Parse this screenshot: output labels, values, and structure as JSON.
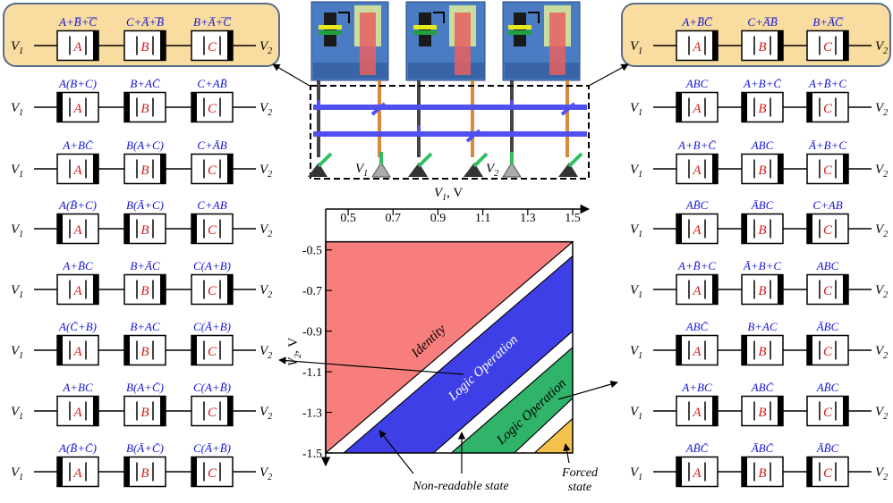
{
  "colors": {
    "identity": "#f87e7e",
    "logic_operation": "#3f3fe8",
    "logic_operation_2": "#2fb46a",
    "forced_state": "#f6c24e",
    "label_blue": "#1515d8",
    "label_red": "#d41a1a",
    "highlight_box": "#f8dca0"
  },
  "device_letters": [
    "A",
    "B",
    "C"
  ],
  "terminals": {
    "v1": "V",
    "v1_sub": "1",
    "v2": "V",
    "v2_sub": "2"
  },
  "left_column": [
    {
      "exprs": [
        "A+B̅+̅C̅",
        "C+A̅+̅B̅",
        "B+A̅+̅C̅"
      ],
      "highlighted": true
    },
    {
      "exprs": [
        "A(B+C)",
        "B+AC̄",
        "C+AB̄"
      ]
    },
    {
      "exprs": [
        "A+BC̄",
        "B(A+C)",
        "C+ĀB"
      ]
    },
    {
      "exprs": [
        "A(B̄+C)",
        "B(Ā+C)",
        "C+AB"
      ]
    },
    {
      "exprs": [
        "A+B̄C",
        "B+ĀC",
        "C(A+B)"
      ]
    },
    {
      "exprs": [
        "A(C̄+B)",
        "B+AC",
        "C(Ā+B)"
      ]
    },
    {
      "exprs": [
        "A+BC",
        "B(A+C̄)",
        "C(A+B̄)"
      ]
    },
    {
      "exprs": [
        "A(B̄+C̄)",
        "B(Ā+C̄)",
        "C(Ā+B̄)"
      ]
    }
  ],
  "right_column": [
    {
      "exprs": [
        "A+B̅C̅",
        "C+A̅B̅",
        "B+A̅C̅"
      ],
      "highlighted": true
    },
    {
      "exprs": [
        "ABC",
        "A+B+C̄",
        "A+B̄+C"
      ]
    },
    {
      "exprs": [
        "A+B+C̄",
        "ABC",
        "Ā+B+C"
      ]
    },
    {
      "exprs": [
        "AB̄C",
        "ĀBC",
        "C+AB"
      ]
    },
    {
      "exprs": [
        "A+B̄+C",
        "Ā+B+C",
        "ABC"
      ]
    },
    {
      "exprs": [
        "ABC̄",
        "B+AC",
        "ĀBC"
      ]
    },
    {
      "exprs": [
        "A+BC",
        "ABC̄",
        "AB̄C"
      ]
    },
    {
      "exprs": [
        "AB̄C̄",
        "ĀBC̄",
        "ĀB̄C"
      ]
    }
  ],
  "chart_data": {
    "type": "area",
    "xlabel": "V1, V",
    "ylabel": "V2, V",
    "x_ticks": [
      0.5,
      0.7,
      0.9,
      1.1,
      1.3,
      1.5
    ],
    "y_ticks": [
      -0.5,
      -0.7,
      -0.9,
      -1.1,
      -1.3,
      -1.5
    ],
    "xlim": [
      0.4,
      1.5
    ],
    "ylim": [
      -1.5,
      -0.4
    ],
    "x_ticklabels": [
      "0.5",
      "0.7",
      "0.9",
      "1.1",
      "1.3",
      "1.5"
    ],
    "y_ticklabels": [
      "-0.5",
      "-0.7",
      "-0.9",
      "-1.1",
      "-1.3",
      "-1.5"
    ],
    "regions": [
      {
        "name": "Identity",
        "color": "#f87e7e",
        "polygon": [
          [
            0.4,
            -0.46
          ],
          [
            1.5,
            -0.46
          ],
          [
            0.4,
            -1.5
          ]
        ]
      },
      {
        "name": "Non-readable state",
        "color": "#ffffff",
        "polygon": [
          [
            0.4,
            -1.5
          ],
          [
            1.5,
            -0.46
          ],
          [
            1.5,
            -0.53
          ],
          [
            0.48,
            -1.5
          ]
        ]
      },
      {
        "name": "Logic Operation",
        "color": "#3f3fe8",
        "polygon": [
          [
            0.48,
            -1.5
          ],
          [
            1.5,
            -0.53
          ],
          [
            1.5,
            -0.9
          ],
          [
            0.88,
            -1.5
          ]
        ]
      },
      {
        "name": "Non-readable state",
        "color": "#ffffff",
        "polygon": [
          [
            0.88,
            -1.5
          ],
          [
            1.5,
            -0.9
          ],
          [
            1.5,
            -0.98
          ],
          [
            0.96,
            -1.5
          ]
        ]
      },
      {
        "name": "Logic Operation",
        "color": "#2fb46a",
        "polygon": [
          [
            0.96,
            -1.5
          ],
          [
            1.5,
            -0.98
          ],
          [
            1.5,
            -1.23
          ],
          [
            1.24,
            -1.5
          ]
        ]
      },
      {
        "name": "Forced state",
        "color": "#ffffff",
        "polygon": [
          [
            1.24,
            -1.5
          ],
          [
            1.5,
            -1.23
          ],
          [
            1.5,
            -1.33
          ],
          [
            1.33,
            -1.5
          ]
        ]
      },
      {
        "name": "Forced state",
        "color": "#f6c24e",
        "polygon": [
          [
            1.33,
            -1.5
          ],
          [
            1.5,
            -1.33
          ],
          [
            1.5,
            -1.5
          ]
        ]
      }
    ],
    "region_labels": [
      "Identity",
      "Logic Operation",
      "Logic Operation"
    ],
    "annotations": [
      "Non-readable state",
      "Forced state"
    ]
  },
  "texts": {
    "x_axis_label": "V",
    "x_axis_sub": "1",
    "x_axis_unit": ", V",
    "y_axis_label": "V",
    "y_axis_sub": "2",
    "y_axis_unit": ", V",
    "identity": "Identity",
    "logic_operation": "Logic Operation",
    "non_readable": "Non-readable state",
    "forced": "Forced",
    "state": "state"
  },
  "schematic_labels": {
    "v1": "V",
    "v1_sub": "1",
    "v2": "V",
    "v2_sub": "2"
  }
}
